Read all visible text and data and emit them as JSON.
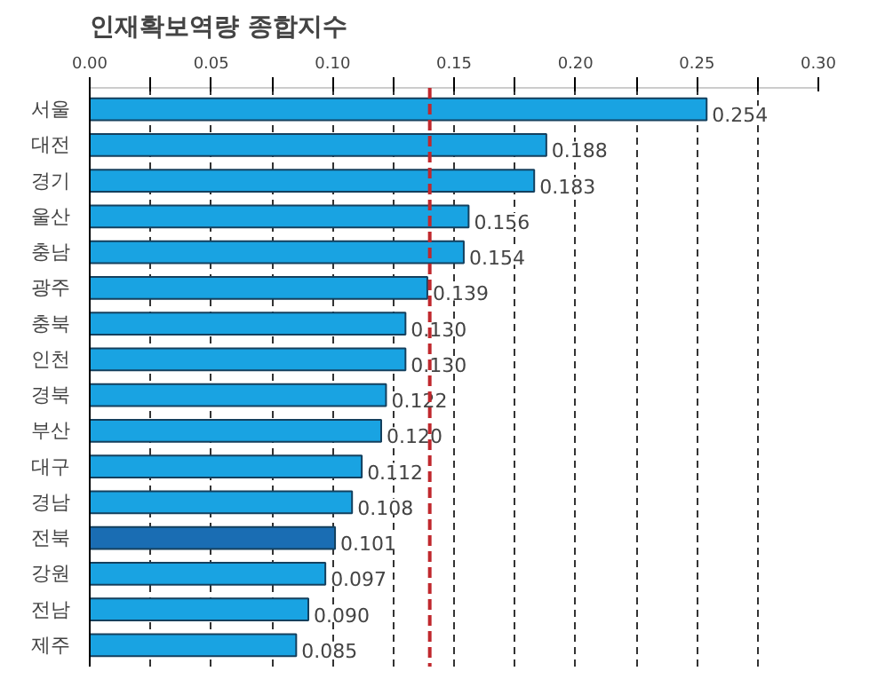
{
  "chart_data": {
    "type": "bar",
    "orientation": "horizontal",
    "title": "인재확보역량 종합지수",
    "categories": [
      "서울",
      "대전",
      "경기",
      "울산",
      "충남",
      "광주",
      "충북",
      "인천",
      "경북",
      "부산",
      "대구",
      "경남",
      "전북",
      "강원",
      "전남",
      "제주"
    ],
    "values": [
      0.254,
      0.188,
      0.183,
      0.156,
      0.154,
      0.139,
      0.13,
      0.13,
      0.122,
      0.12,
      0.112,
      0.108,
      0.101,
      0.097,
      0.09,
      0.085
    ],
    "colors": [
      "#19a3e2",
      "#19a3e2",
      "#19a3e2",
      "#19a3e2",
      "#19a3e2",
      "#19a3e2",
      "#19a3e2",
      "#19a3e2",
      "#19a3e2",
      "#19a3e2",
      "#19a3e2",
      "#19a3e2",
      "#1a6db3",
      "#19a3e2",
      "#19a3e2",
      "#19a3e2"
    ],
    "value_labels": [
      "0.254",
      "0.188",
      "0.183",
      "0.156",
      "0.154",
      "0.139",
      "0.130",
      "0.130",
      "0.122",
      "0.120",
      "0.112",
      "0.108",
      "0.101",
      "0.097",
      "0.090",
      "0.085"
    ],
    "xlim": [
      0,
      0.3
    ],
    "xticks": [
      "0.00",
      {
        "value": 0.025,
        "label": null
      },
      {
        "value": 0.05,
        "label": "0.05"
      },
      {
        "value": 0.075,
        "label": null
      },
      "0.10",
      {
        "value": 0.125,
        "label": null
      },
      "0.15",
      {
        "value": 0.175,
        "label": null
      },
      "0.20",
      {
        "value": 0.225,
        "label": null
      },
      "0.25",
      {
        "value": 0.275,
        "label": null
      },
      "0.30"
    ],
    "grid": "x",
    "ref_lines": [
      {
        "axis": "x",
        "value": 0.14,
        "color": "#c0282d",
        "line_style": "dashed"
      }
    ]
  }
}
